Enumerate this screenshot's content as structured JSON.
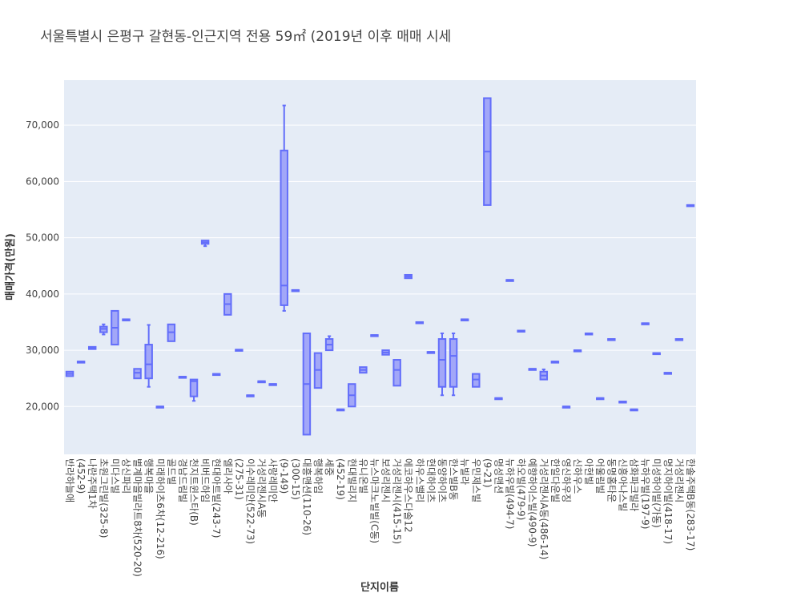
{
  "chart_data": {
    "type": "box",
    "title": "서울특별시 은평구 갈현동-인근지역 전용 59㎡ (2019년 이후 매매 시세",
    "xlabel": "단지이름",
    "ylabel": "매매가격(만원)",
    "y_ticks": [
      "20,000",
      "30,000",
      "40,000",
      "50,000",
      "60,000",
      "70,000"
    ],
    "y_tick_values": [
      20000,
      30000,
      40000,
      50000,
      60000,
      70000
    ],
    "ylim": [
      11500,
      78000
    ],
    "grid": true,
    "colors": {
      "box_line": "#636efa",
      "box_fill": "#a2a7f8",
      "plot_bg": "#e5ecf6",
      "grid": "#ffffff"
    },
    "categories": [
      "반라하늘애",
      "(452-9)",
      "나란주택1차",
      "초원그린빌(325-8)",
      "미다스빌",
      "상신파리",
      "별계마을빌라트8차(520-20)",
      "행복마을",
      "미래하이츠6차(12-216)",
      "골드빌",
      "경남드림빌",
      "천지트윈스타(B)",
      "비버드하임",
      "현대아트빌(243-7)",
      "엘리사아",
      "(275-31)",
      "이수레미안(522-73)",
      "거성리젠시A동",
      "사랑레미안",
      "(9-149)",
      "(300-15)",
      "대흥맨션(110-26)",
      "행복하임",
      "세중",
      "(452-19)",
      "현대빌리지",
      "유니온빌",
      "뉴스마크노빌빌(C동)",
      "보성리젠시",
      "거성리젠시(415-15)",
      "에코하우스다솔12",
      "하우스밸리",
      "현대하이츠",
      "동양하이츠",
      "한스빌B동",
      "뉴빌라",
      "우민제스빌",
      "(9-21)",
      "명성맨션",
      "뉴하우빌(494-7)",
      "하오빌(479-9)",
      "예향하이스빌(490-9)",
      "거성리젠시A동(486-14)",
      "한일다운빌",
      "영신하우징",
      "신하우스",
      "아현빌",
      "어울림빌",
      "동명홈타운",
      "신흥아나스빌",
      "삼화파크빌라",
      "뉴하우빌(197-9)",
      "미성하이빌(가동)",
      "명지하이빌(418-17)",
      "거성리젠시",
      "한솔주택B동(283-17)"
    ],
    "series": [
      {
        "values": [
          [
            25400,
            25400,
            25800,
            26200,
            26200
          ],
          [
            28000,
            28000,
            28000,
            28000,
            28000
          ],
          [
            30200,
            30200,
            30400,
            30600,
            30600
          ],
          [
            32800,
            33200,
            33800,
            34200,
            34600
          ],
          [
            31000,
            31000,
            34000,
            37000,
            37000
          ],
          [
            35500,
            35500,
            35500,
            35500,
            35500
          ],
          [
            25000,
            25000,
            26000,
            26700,
            26700
          ],
          [
            23500,
            25000,
            27500,
            31000,
            34500
          ],
          [
            20000,
            20000,
            20000,
            20000,
            20000
          ],
          [
            31600,
            31600,
            33200,
            34600,
            34600
          ],
          [
            25300,
            25300,
            25300,
            25300,
            25300
          ],
          [
            21000,
            21800,
            24500,
            24800,
            24800
          ],
          [
            48500,
            48900,
            49200,
            49500,
            49500
          ],
          [
            25800,
            25800,
            25800,
            25800,
            25800
          ],
          [
            36300,
            36300,
            38200,
            40000,
            40000
          ],
          [
            30100,
            30100,
            30100,
            30100,
            30100
          ],
          [
            22000,
            22000,
            22000,
            22000,
            22000
          ],
          [
            24500,
            24500,
            24500,
            24500,
            24500
          ],
          [
            24000,
            24000,
            24000,
            24000,
            24000
          ],
          [
            37000,
            38000,
            41500,
            65500,
            73500
          ],
          [
            40700,
            40700,
            40700,
            40700,
            40700
          ],
          [
            15000,
            15000,
            24000,
            33000,
            33000
          ],
          [
            23300,
            23300,
            26500,
            29500,
            29500
          ],
          [
            30000,
            30000,
            31000,
            32000,
            32500
          ],
          [
            19500,
            19500,
            19500,
            19500,
            19500
          ],
          [
            20000,
            20000,
            22000,
            24000,
            24000
          ],
          [
            26000,
            26000,
            26500,
            27000,
            27000
          ],
          [
            32700,
            32700,
            32700,
            32700,
            32700
          ],
          [
            29200,
            29200,
            29600,
            30000,
            30000
          ],
          [
            23700,
            23700,
            26500,
            28300,
            28300
          ],
          [
            42800,
            42800,
            43100,
            43400,
            43400
          ],
          [
            35000,
            35000,
            35000,
            35000,
            35000
          ],
          [
            29700,
            29700,
            29700,
            29700,
            29700
          ],
          [
            22000,
            23500,
            28300,
            32000,
            33000
          ],
          [
            22000,
            23500,
            29000,
            32000,
            33000
          ],
          [
            35500,
            35500,
            35500,
            35500,
            35500
          ],
          [
            23500,
            23500,
            24800,
            25800,
            25800
          ],
          [
            55800,
            55800,
            65300,
            74800,
            74800
          ],
          [
            21500,
            21500,
            21500,
            21500,
            21500
          ],
          [
            42500,
            42500,
            42500,
            42500,
            42500
          ],
          [
            33500,
            33500,
            33500,
            33500,
            33500
          ],
          [
            26700,
            26700,
            26700,
            26700,
            26700
          ],
          [
            24800,
            24800,
            25500,
            26200,
            26600
          ],
          [
            28000,
            28000,
            28000,
            28000,
            28000
          ],
          [
            20000,
            20000,
            20000,
            20000,
            20000
          ],
          [
            30000,
            30000,
            30000,
            30000,
            30000
          ],
          [
            33000,
            33000,
            33000,
            33000,
            33000
          ],
          [
            21500,
            21500,
            21500,
            21500,
            21500
          ],
          [
            32000,
            32000,
            32000,
            32000,
            32000
          ],
          [
            20900,
            20900,
            20900,
            20900,
            20900
          ],
          [
            19500,
            19500,
            19500,
            19500,
            19500
          ],
          [
            34800,
            34800,
            34800,
            34800,
            34800
          ],
          [
            29500,
            29500,
            29500,
            29500,
            29500
          ],
          [
            26000,
            26000,
            26000,
            26000,
            26000
          ],
          [
            32000,
            32000,
            32000,
            32000,
            32000
          ],
          [
            55800,
            55800,
            55800,
            55800,
            55800
          ]
        ]
      }
    ]
  }
}
